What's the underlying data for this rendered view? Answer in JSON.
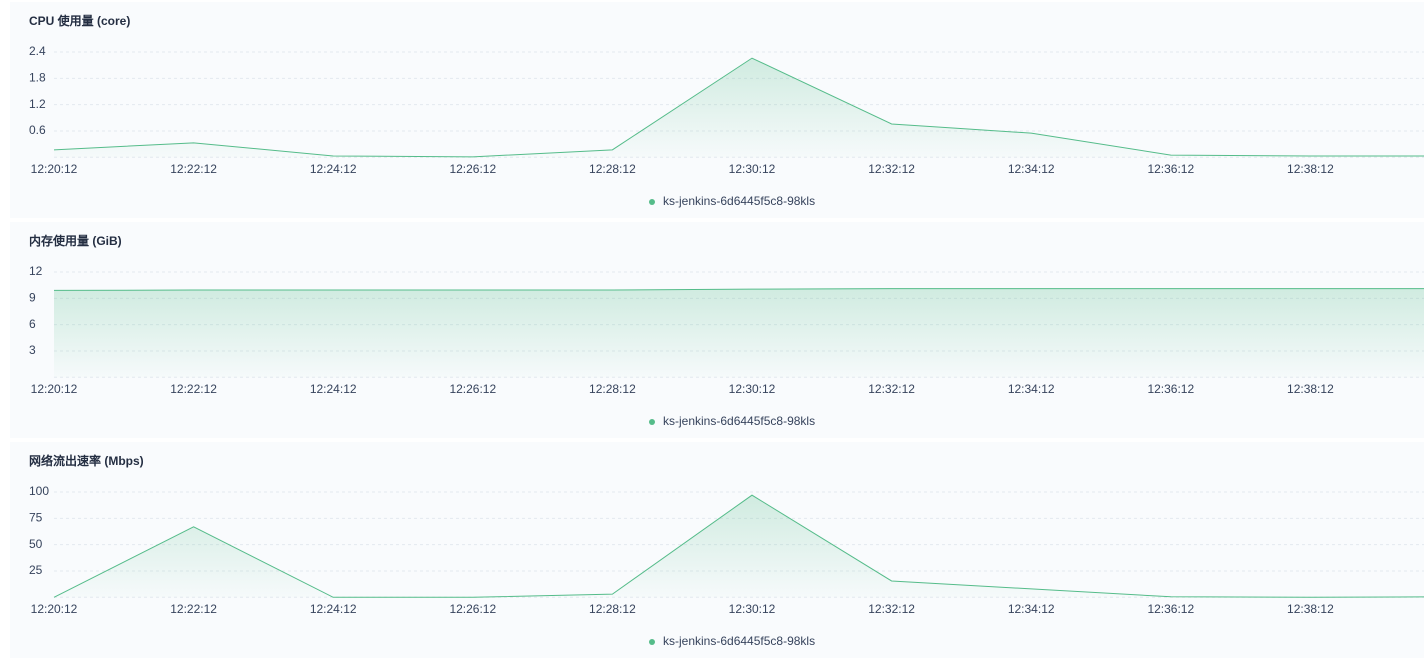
{
  "chart_data": [
    {
      "type": "line",
      "title": "CPU 使用量 (core)",
      "categories": [
        "12:20:12",
        "12:22:12",
        "12:24:12",
        "12:26:12",
        "12:28:12",
        "12:30:12",
        "12:32:12",
        "12:34:12",
        "12:36:12",
        "12:38:12",
        null
      ],
      "series": [
        {
          "name": "ks-jenkins-6d6445f5c8-98kls",
          "color": "#55bc8a",
          "values": [
            0.17,
            0.33,
            0.03,
            0.01,
            0.17,
            2.26,
            0.76,
            0.55,
            0.05,
            0.03,
            0.03
          ]
        }
      ],
      "ylim": [
        0,
        2.4
      ],
      "yticks": [
        0.6,
        1.2,
        1.8,
        2.4
      ],
      "grid": true
    },
    {
      "type": "line",
      "title": "内存使用量 (GiB)",
      "categories": [
        "12:20:12",
        "12:22:12",
        "12:24:12",
        "12:26:12",
        "12:28:12",
        "12:30:12",
        "12:32:12",
        "12:34:12",
        "12:36:12",
        "12:38:12",
        null
      ],
      "series": [
        {
          "name": "ks-jenkins-6d6445f5c8-98kls",
          "color": "#55bc8a",
          "values": [
            9.9,
            9.95,
            9.95,
            9.95,
            9.95,
            10.05,
            10.1,
            10.1,
            10.1,
            10.1,
            10.1
          ]
        }
      ],
      "ylim": [
        0,
        12
      ],
      "yticks": [
        3,
        6,
        9,
        12
      ],
      "grid": true
    },
    {
      "type": "line",
      "title": "网络流出速率 (Mbps)",
      "categories": [
        "12:20:12",
        "12:22:12",
        "12:24:12",
        "12:26:12",
        "12:28:12",
        "12:30:12",
        "12:32:12",
        "12:34:12",
        "12:36:12",
        "12:38:12",
        null
      ],
      "series": [
        {
          "name": "ks-jenkins-6d6445f5c8-98kls",
          "color": "#55bc8a",
          "values": [
            0,
            67,
            0,
            0,
            3,
            97,
            15.5,
            8,
            0.5,
            0,
            0.5
          ]
        }
      ],
      "ylim": [
        0,
        100
      ],
      "yticks": [
        25,
        50,
        75,
        100
      ],
      "grid": true
    }
  ]
}
